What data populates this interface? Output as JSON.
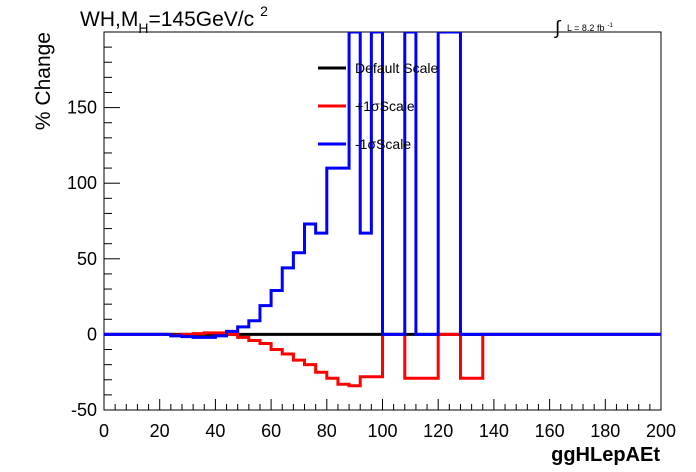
{
  "chart_data": {
    "type": "line",
    "title_main": "WH,M",
    "title_sub": "H",
    "title_rest": "=145GeV/c",
    "title_sup": "2",
    "lumi_text": "L = 8.2 fb",
    "lumi_sup": "-1",
    "xlabel": "ggHLepAEt",
    "ylabel": "% Change",
    "xlim": [
      0,
      200
    ],
    "ylim": [
      -50,
      200
    ],
    "xticks": [
      0,
      20,
      40,
      60,
      80,
      100,
      120,
      140,
      160,
      180,
      200
    ],
    "yticks": [
      -50,
      0,
      50,
      100,
      150
    ],
    "legend_position": "top-center",
    "bin_width": 4,
    "series": [
      {
        "name": "Default Scale",
        "color": "#000000",
        "values": [
          0,
          0,
          0,
          0,
          0,
          0,
          0,
          0,
          0,
          0,
          0,
          0,
          0,
          0,
          0,
          0,
          0,
          0,
          0,
          0,
          0,
          0,
          0,
          0,
          0,
          0,
          0,
          0,
          0,
          0,
          0,
          0,
          0,
          0,
          0,
          0,
          0,
          0,
          0,
          0,
          0,
          0,
          0,
          0,
          0,
          0,
          0,
          0,
          0,
          0
        ]
      },
      {
        "name": "+1σScale",
        "color": "#ff0000",
        "values": [
          0,
          0,
          0,
          0,
          0,
          0,
          -0.5,
          0,
          0.5,
          1,
          1,
          0,
          -2,
          -4,
          -6,
          -10,
          -13,
          -17,
          -20,
          -25,
          -29,
          -33,
          -34,
          -28,
          -28,
          0,
          0,
          -29,
          -29,
          -29,
          0,
          0,
          -29,
          -29,
          0,
          0,
          0,
          0,
          0,
          0,
          0,
          0,
          0,
          0,
          0,
          0,
          0,
          0,
          0,
          0
        ]
      },
      {
        "name": "-1σScale",
        "color": "#0000ff",
        "values": [
          0,
          0,
          0,
          0,
          0,
          0,
          -1,
          -1.5,
          -2,
          -2,
          -1,
          2,
          5,
          9,
          19,
          29,
          44,
          54,
          73,
          67,
          110,
          110,
          200,
          67,
          200,
          0,
          0,
          200,
          0,
          0,
          200,
          200,
          0,
          0,
          0,
          0,
          0,
          0,
          0,
          0,
          0,
          0,
          0,
          0,
          0,
          0,
          0,
          0,
          0,
          0
        ]
      }
    ]
  }
}
